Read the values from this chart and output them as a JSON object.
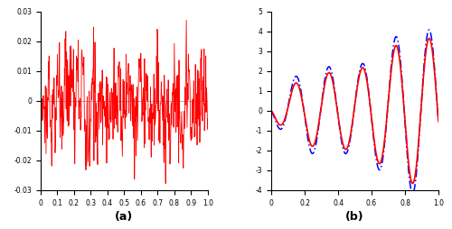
{
  "left_xlim": [
    0,
    1
  ],
  "left_ylim": [
    -0.03,
    0.03
  ],
  "left_yticks": [
    -0.03,
    -0.02,
    -0.01,
    0,
    0.01,
    0.02,
    0.03
  ],
  "left_xticks": [
    0,
    0.1,
    0.2,
    0.3,
    0.4,
    0.5,
    0.6,
    0.7,
    0.8,
    0.9,
    1.0
  ],
  "right_xlim": [
    0,
    1
  ],
  "right_ylim": [
    -4,
    5
  ],
  "right_yticks": [
    -4,
    -3,
    -2,
    -1,
    0,
    1,
    2,
    3,
    4,
    5
  ],
  "right_xticks": [
    0,
    0.2,
    0.4,
    0.6,
    0.8,
    1.0
  ],
  "noisy_color": "#ff0000",
  "smooth_color": "#ff0000",
  "dashed_color": "#0000ff",
  "zero_line_color": "#909090",
  "label_a": "(a)",
  "label_b": "(b)",
  "noise_seed": 7,
  "noise_amplitude": 0.025,
  "n_noisy_points": 500
}
